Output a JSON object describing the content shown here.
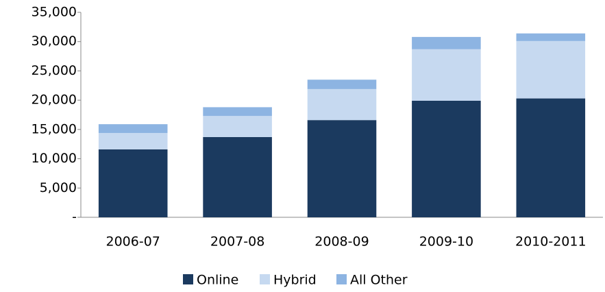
{
  "chart_data": {
    "type": "stacked_bar",
    "categories": [
      "2006-07",
      "2007-08",
      "2008-09",
      "2009-10",
      "2010-2011"
    ],
    "series": [
      {
        "name": "Online",
        "color": "#1b3a5f",
        "values": [
          11600,
          13700,
          16600,
          19900,
          20300
        ]
      },
      {
        "name": "Hybrid",
        "color": "#c6d9f0",
        "values": [
          2800,
          3600,
          5300,
          8800,
          9800
        ]
      },
      {
        "name": "All Other",
        "color": "#8db4e2",
        "values": [
          1500,
          1500,
          1600,
          2100,
          1300
        ]
      }
    ],
    "ylim": [
      0,
      35000
    ],
    "yticks": [
      {
        "value": 0,
        "label": "-"
      },
      {
        "value": 5000,
        "label": "5,000"
      },
      {
        "value": 10000,
        "label": "10,000"
      },
      {
        "value": 15000,
        "label": "15,000"
      },
      {
        "value": 20000,
        "label": "20,000"
      },
      {
        "value": 25000,
        "label": "25,000"
      },
      {
        "value": 30000,
        "label": "30,000"
      },
      {
        "value": 35000,
        "label": "35,000"
      }
    ],
    "grid": false,
    "legend": "bottom"
  }
}
